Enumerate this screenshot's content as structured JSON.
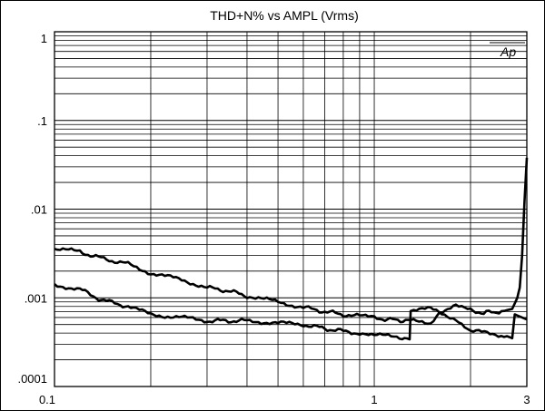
{
  "chart_data": {
    "type": "line",
    "title": "THD+N% vs AMPL (Vrms)",
    "xlabel": "",
    "ylabel": "",
    "x_scale": "log",
    "y_scale": "log",
    "xlim": [
      0.1,
      3
    ],
    "ylim": [
      0.0001,
      1
    ],
    "x_tick_labels": [
      {
        "value": 0.1,
        "label": "0.1"
      },
      {
        "value": 1,
        "label": "1"
      },
      {
        "value": 3,
        "label": "3"
      }
    ],
    "y_tick_labels": [
      {
        "value": 1,
        "label": "1"
      },
      {
        "value": 0.1,
        "label": ".1"
      },
      {
        "value": 0.01,
        "label": ".01"
      },
      {
        "value": 0.001,
        "label": ".001"
      },
      {
        "value": 0.0001,
        "label": ".0001"
      }
    ],
    "grid": true,
    "badge": "Ap",
    "series": [
      {
        "values": [
          [
            0.1,
            0.0036
          ],
          [
            0.12,
            0.0033
          ],
          [
            0.14,
            0.0028
          ],
          [
            0.17,
            0.0024
          ],
          [
            0.2,
            0.0019
          ],
          [
            0.25,
            0.0016
          ],
          [
            0.3,
            0.0013
          ],
          [
            0.35,
            0.0012
          ],
          [
            0.4,
            0.00105
          ],
          [
            0.5,
            0.0009
          ],
          [
            0.6,
            0.00078
          ],
          [
            0.7,
            0.0007
          ],
          [
            0.8,
            0.00065
          ],
          [
            0.9,
            0.00062
          ],
          [
            1.0,
            0.0006
          ],
          [
            1.1,
            0.00057
          ],
          [
            1.3,
            0.00055
          ],
          [
            1.5,
            0.00052
          ],
          [
            1.6,
            0.0007
          ],
          [
            1.8,
            0.0008
          ],
          [
            2.0,
            0.00072
          ],
          [
            2.2,
            0.00068
          ],
          [
            2.5,
            0.0007
          ],
          [
            2.7,
            0.00075
          ],
          [
            2.8,
            0.001
          ],
          [
            2.85,
            0.0013
          ],
          [
            2.9,
            0.003
          ],
          [
            2.95,
            0.012
          ],
          [
            3.0,
            0.038
          ]
        ]
      },
      {
        "values": [
          [
            0.1,
            0.0014
          ],
          [
            0.12,
            0.00125
          ],
          [
            0.14,
            0.00095
          ],
          [
            0.17,
            0.0008
          ],
          [
            0.2,
            0.00065
          ],
          [
            0.25,
            0.0006
          ],
          [
            0.3,
            0.00055
          ],
          [
            0.4,
            0.00055
          ],
          [
            0.5,
            0.00052
          ],
          [
            0.6,
            0.0005
          ],
          [
            0.7,
            0.00045
          ],
          [
            0.8,
            0.00042
          ],
          [
            0.9,
            0.0004
          ],
          [
            1.0,
            0.00038
          ],
          [
            1.2,
            0.00036
          ],
          [
            1.29,
            0.00034
          ],
          [
            1.3,
            0.00072
          ],
          [
            1.5,
            0.00075
          ],
          [
            1.8,
            0.00058
          ],
          [
            2.0,
            0.00042
          ],
          [
            2.3,
            0.0004
          ],
          [
            2.6,
            0.00037
          ],
          [
            2.7,
            0.00035
          ],
          [
            2.75,
            0.00065
          ],
          [
            2.9,
            0.0006
          ],
          [
            3.0,
            0.00057
          ]
        ]
      }
    ]
  }
}
